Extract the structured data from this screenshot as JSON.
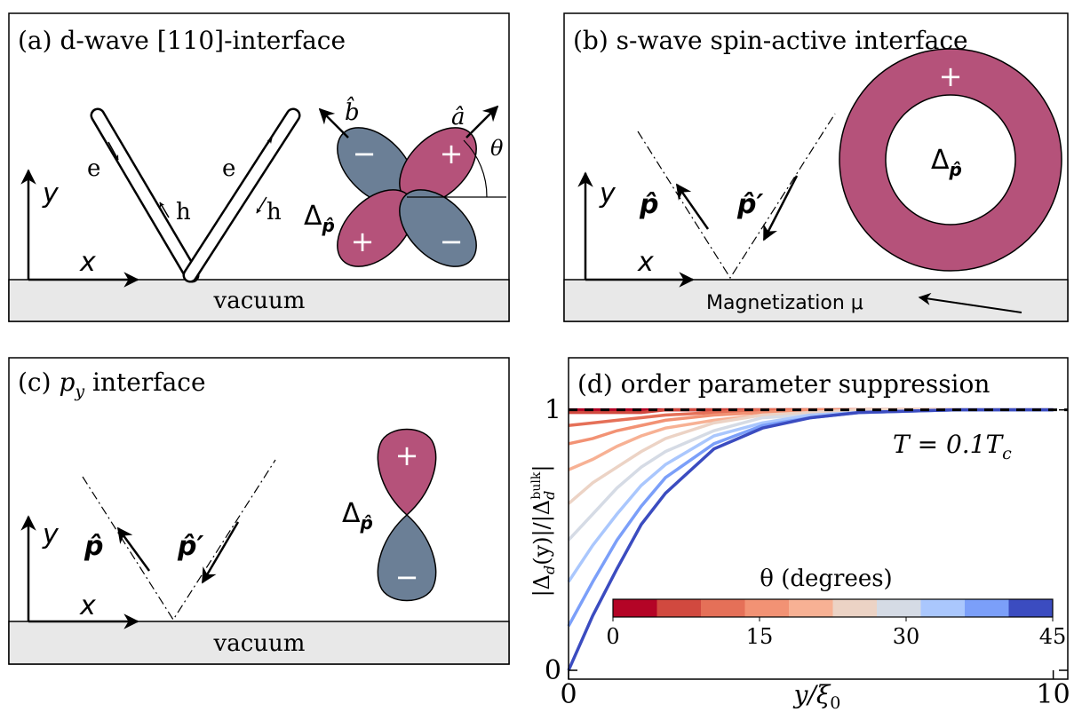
{
  "panels": {
    "a": {
      "title": "(a) d-wave [110]-interface",
      "axis_y": "y",
      "axis_x": "x",
      "electron_1": "e",
      "hole_1": "h",
      "electron_2": "e",
      "hole_2": "h",
      "axis_b": "b̂",
      "axis_a": "â",
      "angle": "θ",
      "gap": "Δ",
      "gap_sub": "p̂",
      "lobe_signs": [
        "−",
        "+",
        "+",
        "−"
      ],
      "substrate": "vacuum"
    },
    "b": {
      "title": "(b) s-wave spin-active interface",
      "axis_y": "y",
      "axis_x": "x",
      "momentum_in": "p̂",
      "momentum_out": "p̂′",
      "gap": "Δ",
      "gap_sub": "p̂",
      "sign": "+",
      "substrate": "Magnetization μ"
    },
    "c": {
      "title_pre": "(c) ",
      "title_var": "p",
      "title_sub": "y",
      "title_post": " interface",
      "axis_y": "y",
      "axis_x": "x",
      "momentum_in": "p̂",
      "momentum_out": "p̂′",
      "gap": "Δ",
      "gap_sub": "p̂",
      "signs": [
        "+",
        "−"
      ],
      "substrate": "vacuum"
    }
  },
  "chart_data": {
    "type": "line",
    "title": "(d) order parameter suppression",
    "x_label": [
      "y/ξ",
      "0"
    ],
    "y_label": [
      "|Δ",
      "d",
      "(y)|/|Δ",
      "d",
      "bulk",
      "|"
    ],
    "annotation": [
      "T = 0.1T",
      "c"
    ],
    "x": [
      0,
      0.5,
      1,
      1.5,
      2,
      3,
      4,
      5,
      6,
      8,
      10
    ],
    "xlim": [
      0,
      10.3
    ],
    "ylim": [
      -0.034,
      1.2
    ],
    "xticks": [
      0,
      10
    ],
    "yticks": [
      0,
      1
    ],
    "reference_line": 1,
    "series": [
      {
        "theta": 0,
        "color": "#b40426",
        "values": [
          1,
          1,
          1,
          1,
          1,
          1,
          1,
          1,
          1,
          1,
          1
        ]
      },
      {
        "theta": 5,
        "color": "#d1493f",
        "values": [
          0.99,
          0.99,
          0.99,
          0.99,
          1,
          1,
          1,
          1,
          1,
          1,
          1
        ]
      },
      {
        "theta": 10,
        "color": "#e57058",
        "values": [
          0.94,
          0.95,
          0.96,
          0.97,
          0.98,
          0.99,
          1,
          1,
          1,
          1,
          1
        ]
      },
      {
        "theta": 15,
        "color": "#f29274",
        "values": [
          0.87,
          0.89,
          0.92,
          0.94,
          0.96,
          0.98,
          0.99,
          1,
          1,
          1,
          1
        ]
      },
      {
        "theta": 20,
        "color": "#f7b194",
        "values": [
          0.77,
          0.81,
          0.86,
          0.9,
          0.93,
          0.96,
          0.98,
          0.99,
          1,
          1,
          1
        ]
      },
      {
        "theta": 25,
        "color": "#ecd3c5",
        "values": [
          0.64,
          0.72,
          0.78,
          0.84,
          0.89,
          0.95,
          0.98,
          0.99,
          1,
          1,
          1
        ]
      },
      {
        "theta": 30,
        "color": "#d5dbe5",
        "values": [
          0.5,
          0.6,
          0.7,
          0.78,
          0.84,
          0.92,
          0.97,
          0.98,
          0.99,
          1,
          1
        ]
      },
      {
        "theta": 35,
        "color": "#aac7fd",
        "values": [
          0.34,
          0.48,
          0.6,
          0.71,
          0.79,
          0.9,
          0.95,
          0.98,
          0.99,
          1,
          1
        ]
      },
      {
        "theta": 40,
        "color": "#7b9ff9",
        "values": [
          0.17,
          0.34,
          0.5,
          0.63,
          0.74,
          0.87,
          0.94,
          0.97,
          0.99,
          1,
          1
        ]
      },
      {
        "theta": 45,
        "color": "#3b4cc0",
        "values": [
          0,
          0.21,
          0.39,
          0.56,
          0.68,
          0.85,
          0.93,
          0.97,
          0.99,
          1,
          1
        ]
      }
    ],
    "colorbar": {
      "label": "θ (degrees)",
      "lim": [
        0,
        45
      ],
      "ticks": [
        0,
        15,
        30,
        45
      ]
    }
  }
}
